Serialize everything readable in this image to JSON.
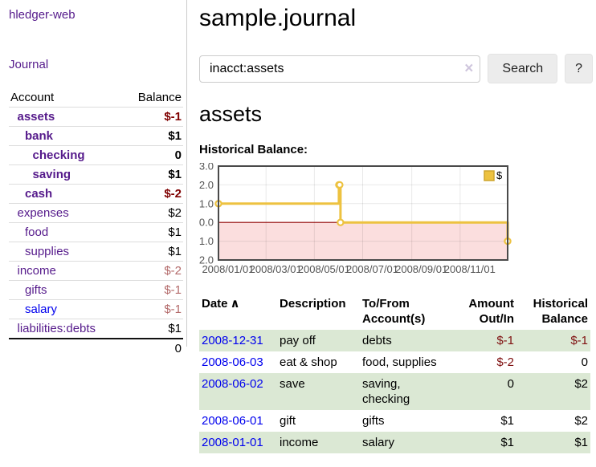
{
  "app_title": "hledger-web",
  "nav": {
    "journal": "Journal"
  },
  "sidebar": {
    "headers": {
      "account": "Account",
      "balance": "Balance"
    },
    "accounts": [
      {
        "name": "assets",
        "balance": "$-1",
        "indent": 1,
        "bold": true,
        "neg": "strong",
        "link": "purple"
      },
      {
        "name": "bank",
        "balance": "$1",
        "indent": 2,
        "bold": true,
        "neg": "none",
        "link": "purple"
      },
      {
        "name": "checking",
        "balance": "0",
        "indent": 3,
        "bold": true,
        "neg": "none",
        "link": "purple"
      },
      {
        "name": "saving",
        "balance": "$1",
        "indent": 3,
        "bold": true,
        "neg": "none",
        "link": "purple"
      },
      {
        "name": "cash",
        "balance": "$-2",
        "indent": 2,
        "bold": true,
        "neg": "strong",
        "link": "purple"
      },
      {
        "name": "expenses",
        "balance": "$2",
        "indent": 1,
        "bold": false,
        "neg": "none",
        "link": "purple"
      },
      {
        "name": "food",
        "balance": "$1",
        "indent": 2,
        "bold": false,
        "neg": "none",
        "link": "purple"
      },
      {
        "name": "supplies",
        "balance": "$1",
        "indent": 2,
        "bold": false,
        "neg": "none",
        "link": "purple"
      },
      {
        "name": "income",
        "balance": "$-2",
        "indent": 1,
        "bold": false,
        "neg": "soft",
        "link": "purple"
      },
      {
        "name": "gifts",
        "balance": "$-1",
        "indent": 2,
        "bold": false,
        "neg": "soft",
        "link": "purple"
      },
      {
        "name": "salary",
        "balance": "$-1",
        "indent": 2,
        "bold": false,
        "neg": "soft",
        "link": "blue"
      },
      {
        "name": "liabilities:debts",
        "balance": "$1",
        "indent": 1,
        "bold": false,
        "neg": "none",
        "link": "purple"
      }
    ],
    "total": "0"
  },
  "header": {
    "title": "sample.journal"
  },
  "search": {
    "value": "inacct:assets",
    "clear": "×",
    "button": "Search",
    "help": "?"
  },
  "account_page": {
    "title": "assets",
    "chart_heading": "Historical Balance:"
  },
  "chart_data": {
    "type": "line",
    "title": "Historical Balance",
    "step": "after",
    "series": [
      {
        "name": "$",
        "x": [
          "2008-01-01",
          "2008-06-01",
          "2008-06-02",
          "2008-06-03",
          "2008-12-31"
        ],
        "y": [
          1,
          2,
          2,
          0,
          -1
        ]
      }
    ],
    "x_range": [
      "2008-01-01",
      "2008-12-31"
    ],
    "x_ticks": [
      "2008/01/01",
      "2008/03/01",
      "2008/05/01",
      "2008/07/01",
      "2008/09/01",
      "2008/11/01"
    ],
    "y_ticks": [
      "3.0",
      "2.0",
      "1.0",
      "0.0",
      "-1.0",
      "-2.0"
    ],
    "ylim": [
      -2,
      3
    ],
    "grid": true,
    "legend_position": "top-right",
    "legend_entries": [
      "$"
    ],
    "colors": {
      "series": "#edc240",
      "series_border": "#cda52e",
      "negative_region": "#fbdede",
      "zero_line": "#8f0000",
      "gridline": "rgba(0,0,0,0.09)",
      "plot_border": "#4a4a4a",
      "tick_text": "#545454"
    }
  },
  "register": {
    "sort_icon": "∧",
    "columns": [
      {
        "line1": "Date",
        "line2": "",
        "align": "left",
        "sorted": true
      },
      {
        "line1": "Description",
        "line2": "",
        "align": "left",
        "sorted": false
      },
      {
        "line1": "To/From",
        "line2": "Account(s)",
        "align": "left",
        "sorted": false
      },
      {
        "line1": "Amount",
        "line2": "Out/In",
        "align": "right",
        "sorted": false
      },
      {
        "line1": "Historical",
        "line2": "Balance",
        "align": "right",
        "sorted": false
      }
    ],
    "rows": [
      {
        "date": "2008-12-31",
        "description": "pay off",
        "accounts": "debts",
        "amount": "$-1",
        "balance": "$-1",
        "amount_neg": true,
        "balance_neg": true
      },
      {
        "date": "2008-06-03",
        "description": "eat & shop",
        "accounts": "food, supplies",
        "amount": "$-2",
        "balance": "0",
        "amount_neg": true,
        "balance_neg": false
      },
      {
        "date": "2008-06-02",
        "description": "save",
        "accounts": "saving, checking",
        "amount": "0",
        "balance": "$2",
        "amount_neg": false,
        "balance_neg": false
      },
      {
        "date": "2008-06-01",
        "description": "gift",
        "accounts": "gifts",
        "amount": "$1",
        "balance": "$2",
        "amount_neg": false,
        "balance_neg": false
      },
      {
        "date": "2008-01-01",
        "description": "income",
        "accounts": "salary",
        "amount": "$1",
        "balance": "$1",
        "amount_neg": false,
        "balance_neg": false
      }
    ]
  }
}
